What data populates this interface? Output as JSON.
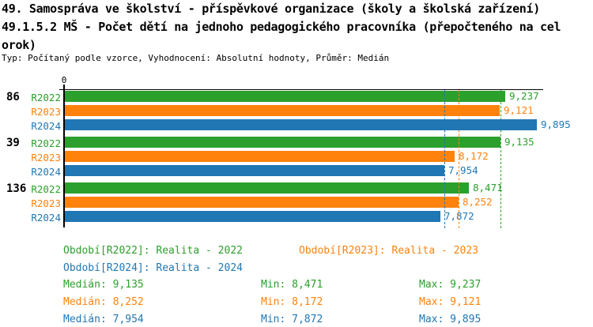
{
  "header": {
    "title_line1": "49. Samospráva ve školství - příspěvkové organizace (školy a školská zařízení)",
    "title_line2": "49.1.5.2 MŠ - Počet dětí na jednoho pedagogického pracovníka (přepočteného na cel",
    "title_line3": "orok)",
    "meta": "Typ: Počítaný podle vzorce, Vyhodnocení: Absolutní hodnoty, Průměr: Medián"
  },
  "chart_data": {
    "type": "bar",
    "orientation": "horizontal",
    "title": "49.1.5.2 MŠ - Počet dětí na jednoho pedagogického pracovníka (přepočteného na celý úvazek)",
    "x_axis": {
      "origin_label": "0",
      "min": 0,
      "approx_max": 10000,
      "grid": false
    },
    "categories": [
      "86",
      "39",
      "136"
    ],
    "series": [
      {
        "id": "R2022",
        "label": "R2022",
        "color": "#2CA02C",
        "values": [
          9237,
          9135,
          8471
        ],
        "displays": [
          "9,237",
          "9,135",
          "8,471"
        ],
        "median": 9135
      },
      {
        "id": "R2023",
        "label": "R2023",
        "color": "#FF820D",
        "values": [
          9121,
          8172,
          8252
        ],
        "displays": [
          "9,121",
          "8,172",
          "8,252"
        ],
        "median": 8252
      },
      {
        "id": "R2024",
        "label": "R2024",
        "color": "#2077B4",
        "values": [
          9895,
          7954,
          7872
        ],
        "displays": [
          "9,895",
          "7,954",
          "7,872"
        ],
        "median": 7954
      }
    ],
    "median_lines": [
      {
        "series": "R2022",
        "value": 9135,
        "color": "#2CA02C"
      },
      {
        "series": "R2023",
        "value": 8252,
        "color": "#FF820D"
      },
      {
        "series": "R2024",
        "value": 7954,
        "color": "#2077B4"
      }
    ],
    "legend_position": "bottom"
  },
  "legend": {
    "items": [
      {
        "text": "Období[R2022]: Realita - 2022",
        "color": "#2CA02C"
      },
      {
        "text": "Období[R2023]: Realita - 2023",
        "color": "#FF820D"
      },
      {
        "text": "Období[R2024]: Realita - 2024",
        "color": "#2077B4"
      }
    ]
  },
  "stats": {
    "rows": [
      {
        "series": "R2022",
        "color": "#2CA02C",
        "median": "Medián: 9,135",
        "min": "Min: 8,471",
        "max": "Max: 9,237"
      },
      {
        "series": "R2023",
        "color": "#FF820D",
        "median": "Medián: 8,252",
        "min": "Min: 8,172",
        "max": "Max: 9,121"
      },
      {
        "series": "R2024",
        "color": "#2077B4",
        "median": "Medián: 7,954",
        "min": "Min: 7,872",
        "max": "Max: 9,895"
      }
    ]
  }
}
